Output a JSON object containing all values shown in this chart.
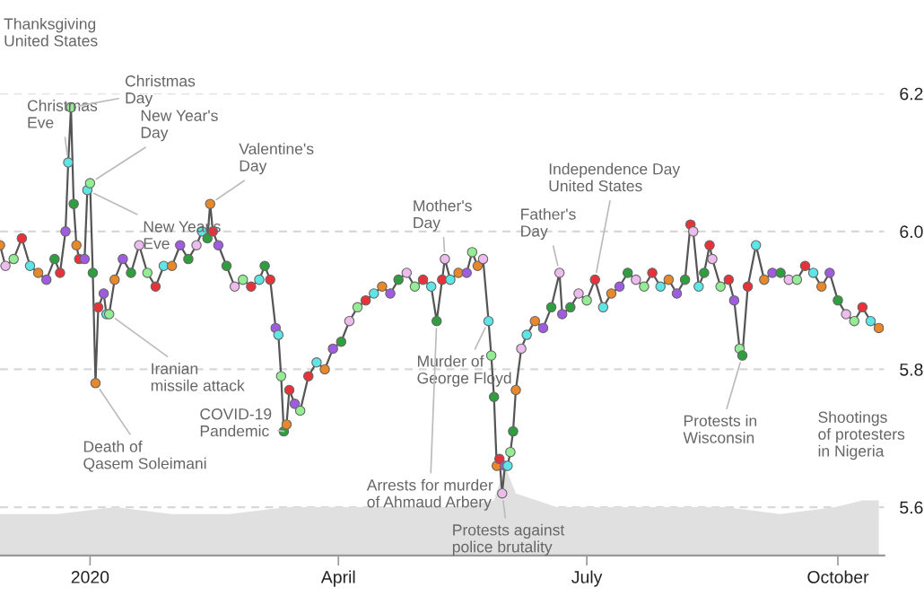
{
  "chart_data": {
    "type": "line",
    "xlim": [
      "2019-11-29",
      "2020-10-18"
    ],
    "ylim": [
      5.53,
      6.2
    ],
    "xticks": [
      {
        "value": "2020-01-01",
        "label": "2020"
      },
      {
        "value": "2020-04-01",
        "label": "April"
      },
      {
        "value": "2020-07-01",
        "label": "July"
      },
      {
        "value": "2020-10-01",
        "label": "October"
      }
    ],
    "yticks": [
      {
        "value": 5.6,
        "label": "5.6"
      },
      {
        "value": 5.8,
        "label": "5.8"
      },
      {
        "value": 6.0,
        "label": "6.0"
      },
      {
        "value": 6.2,
        "label": "6.2"
      }
    ],
    "grid": "y",
    "series": [
      {
        "type": "area",
        "color": "#e0e0e0",
        "x": [
          "2019-11-29",
          "2019-12-20",
          "2020-01-10",
          "2020-01-31",
          "2020-02-21",
          "2020-03-13",
          "2020-04-03",
          "2020-04-24",
          "2020-05-15",
          "2020-05-28",
          "2020-06-01",
          "2020-06-05",
          "2020-06-20",
          "2020-07-10",
          "2020-08-01",
          "2020-08-21",
          "2020-09-10",
          "2020-09-30",
          "2020-10-10",
          "2020-10-16"
        ],
        "values": [
          5.59,
          5.59,
          5.6,
          5.59,
          5.59,
          5.6,
          5.6,
          5.6,
          5.6,
          5.61,
          5.66,
          5.62,
          5.6,
          5.6,
          5.6,
          5.6,
          5.59,
          5.6,
          5.61,
          5.61
        ]
      },
      {
        "marker": "circle",
        "color": "#555555",
        "x": [
          "2019-11-29",
          "2019-12-01",
          "2019-12-04",
          "2019-12-07",
          "2019-12-10",
          "2019-12-13",
          "2019-12-16",
          "2019-12-19",
          "2019-12-21",
          "2019-12-23",
          "2019-12-24",
          "2019-12-25",
          "2019-12-26",
          "2019-12-27",
          "2019-12-28",
          "2019-12-30",
          "2019-12-31",
          "2020-01-01",
          "2020-01-02",
          "2020-01-03",
          "2020-01-04",
          "2020-01-06",
          "2020-01-07",
          "2020-01-08",
          "2020-01-10",
          "2020-01-13",
          "2020-01-16",
          "2020-01-19",
          "2020-01-22",
          "2020-01-25",
          "2020-01-28",
          "2020-01-31",
          "2020-02-03",
          "2020-02-06",
          "2020-02-09",
          "2020-02-11",
          "2020-02-13",
          "2020-02-14",
          "2020-02-15",
          "2020-02-17",
          "2020-02-20",
          "2020-02-23",
          "2020-02-26",
          "2020-02-29",
          "2020-03-03",
          "2020-03-05",
          "2020-03-07",
          "2020-03-09",
          "2020-03-10",
          "2020-03-11",
          "2020-03-12",
          "2020-03-13",
          "2020-03-14",
          "2020-03-16",
          "2020-03-18",
          "2020-03-21",
          "2020-03-24",
          "2020-03-27",
          "2020-03-30",
          "2020-04-02",
          "2020-04-05",
          "2020-04-08",
          "2020-04-11",
          "2020-04-14",
          "2020-04-17",
          "2020-04-20",
          "2020-04-23",
          "2020-04-26",
          "2020-04-29",
          "2020-05-02",
          "2020-05-05",
          "2020-05-07",
          "2020-05-09",
          "2020-05-10",
          "2020-05-12",
          "2020-05-15",
          "2020-05-18",
          "2020-05-20",
          "2020-05-22",
          "2020-05-24",
          "2020-05-26",
          "2020-05-27",
          "2020-05-28",
          "2020-05-29",
          "2020-05-30",
          "2020-05-31",
          "2020-06-01",
          "2020-06-02",
          "2020-06-03",
          "2020-06-04",
          "2020-06-05",
          "2020-06-07",
          "2020-06-09",
          "2020-06-12",
          "2020-06-15",
          "2020-06-18",
          "2020-06-21",
          "2020-06-22",
          "2020-06-25",
          "2020-06-28",
          "2020-07-01",
          "2020-07-04",
          "2020-07-07",
          "2020-07-10",
          "2020-07-13",
          "2020-07-16",
          "2020-07-19",
          "2020-07-22",
          "2020-07-25",
          "2020-07-28",
          "2020-07-31",
          "2020-08-03",
          "2020-08-06",
          "2020-08-08",
          "2020-08-09",
          "2020-08-11",
          "2020-08-13",
          "2020-08-15",
          "2020-08-16",
          "2020-08-19",
          "2020-08-22",
          "2020-08-24",
          "2020-08-26",
          "2020-08-27",
          "2020-08-29",
          "2020-09-01",
          "2020-09-04",
          "2020-09-07",
          "2020-09-10",
          "2020-09-13",
          "2020-09-16",
          "2020-09-19",
          "2020-09-22",
          "2020-09-25",
          "2020-09-28",
          "2020-10-01",
          "2020-10-04",
          "2020-10-07",
          "2020-10-10",
          "2020-10-13",
          "2020-10-16"
        ],
        "values": [
          5.98,
          5.95,
          5.96,
          5.99,
          5.95,
          5.94,
          5.93,
          5.96,
          5.94,
          6.0,
          6.1,
          6.18,
          6.04,
          5.98,
          5.96,
          5.96,
          6.06,
          6.07,
          5.94,
          5.78,
          5.89,
          5.91,
          5.88,
          5.88,
          5.93,
          5.96,
          5.94,
          5.98,
          5.94,
          5.92,
          5.95,
          5.95,
          5.98,
          5.96,
          5.98,
          6.0,
          5.99,
          6.04,
          6.0,
          5.98,
          5.95,
          5.92,
          5.93,
          5.92,
          5.93,
          5.95,
          5.93,
          5.86,
          5.85,
          5.79,
          5.71,
          5.72,
          5.77,
          5.75,
          5.74,
          5.79,
          5.81,
          5.8,
          5.83,
          5.84,
          5.87,
          5.89,
          5.9,
          5.91,
          5.92,
          5.91,
          5.93,
          5.94,
          5.92,
          5.93,
          5.92,
          5.87,
          5.93,
          5.96,
          5.93,
          5.94,
          5.94,
          5.97,
          5.95,
          5.96,
          5.87,
          5.82,
          5.76,
          5.66,
          5.67,
          5.62,
          5.66,
          5.66,
          5.68,
          5.71,
          5.77,
          5.83,
          5.85,
          5.87,
          5.86,
          5.89,
          5.94,
          5.88,
          5.89,
          5.91,
          5.9,
          5.93,
          5.89,
          5.91,
          5.92,
          5.94,
          5.93,
          5.92,
          5.94,
          5.92,
          5.93,
          5.91,
          5.93,
          6.01,
          6.0,
          5.92,
          5.94,
          5.98,
          5.96,
          5.92,
          5.93,
          5.9,
          5.83,
          5.82,
          5.92,
          5.98,
          5.93,
          5.94,
          5.94,
          5.93,
          5.93,
          5.95,
          5.94,
          5.92,
          5.94,
          5.9,
          5.88,
          5.87,
          5.89,
          5.87,
          5.86
        ],
        "colors": [
          "#e8882a",
          "#ecbcec",
          "#94ec94",
          "#e8323a",
          "#5ee6e6",
          "#e8882a",
          "#a05ce0",
          "#2e9e3e",
          "#e8323a",
          "#a05ce0",
          "#5ee6e6",
          "#94ec94",
          "#2e9e3e",
          "#e8882a",
          "#e8323a",
          "#a05ce0",
          "#5ee6e6",
          "#94ec94",
          "#2e9e3e",
          "#e8882a",
          "#e8323a",
          "#a05ce0",
          "#5ee6e6",
          "#94ec94",
          "#e8882a",
          "#a05ce0",
          "#2e9e3e",
          "#ecbcec",
          "#94ec94",
          "#e8323a",
          "#5ee6e6",
          "#e8882a",
          "#a05ce0",
          "#2e9e3e",
          "#ecbcec",
          "#5ee6e6",
          "#2e9e3e",
          "#e8882a",
          "#e8323a",
          "#a05ce0",
          "#2e9e3e",
          "#ecbcec",
          "#94ec94",
          "#e8323a",
          "#5ee6e6",
          "#2e9e3e",
          "#e8323a",
          "#a05ce0",
          "#5ee6e6",
          "#94ec94",
          "#2e9e3e",
          "#e8882a",
          "#e8323a",
          "#a05ce0",
          "#94ec94",
          "#e8323a",
          "#5ee6e6",
          "#e8882a",
          "#a05ce0",
          "#2e9e3e",
          "#ecbcec",
          "#94ec94",
          "#e8323a",
          "#5ee6e6",
          "#e8882a",
          "#a05ce0",
          "#2e9e3e",
          "#ecbcec",
          "#94ec94",
          "#e8323a",
          "#5ee6e6",
          "#2e9e3e",
          "#e8323a",
          "#ecbcec",
          "#5ee6e6",
          "#e8882a",
          "#a05ce0",
          "#94ec94",
          "#e8882a",
          "#ecbcec",
          "#5ee6e6",
          "#94ec94",
          "#2e9e3e",
          "#e8882a",
          "#e8323a",
          "#ecbcec",
          "#a05ce0",
          "#5ee6e6",
          "#94ec94",
          "#2e9e3e",
          "#e8882a",
          "#ecbcec",
          "#5ee6e6",
          "#e8882a",
          "#a05ce0",
          "#2e9e3e",
          "#ecbcec",
          "#a05ce0",
          "#2e9e3e",
          "#ecbcec",
          "#94ec94",
          "#e8323a",
          "#5ee6e6",
          "#e8882a",
          "#a05ce0",
          "#2e9e3e",
          "#ecbcec",
          "#94ec94",
          "#e8323a",
          "#5ee6e6",
          "#e8882a",
          "#a05ce0",
          "#2e9e3e",
          "#e8323a",
          "#ecbcec",
          "#5ee6e6",
          "#2e9e3e",
          "#e8323a",
          "#ecbcec",
          "#94ec94",
          "#e8323a",
          "#a05ce0",
          "#94ec94",
          "#2e9e3e",
          "#e8323a",
          "#5ee6e6",
          "#e8882a",
          "#a05ce0",
          "#2e9e3e",
          "#ecbcec",
          "#94ec94",
          "#e8323a",
          "#5ee6e6",
          "#e8882a",
          "#a05ce0",
          "#2e9e3e",
          "#ecbcec",
          "#94ec94",
          "#e8323a",
          "#5ee6e6",
          "#e8882a"
        ]
      }
    ],
    "annotations": [
      "Thanksgiving\nUnited States",
      {
        "text": "Christmas\nEve",
        "x": "2019-12-24",
        "y": 6.1
      },
      {
        "text": "Christmas\nDay",
        "x": "2019-12-25",
        "y": 6.18
      },
      {
        "text": "New Year's\nDay",
        "x": "2020-01-01",
        "y": 6.07
      },
      {
        "text": "New Year's\nEve",
        "x": "2019-12-31",
        "y": 6.06
      },
      {
        "text": "Valentine's\nDay",
        "x": "2020-02-14",
        "y": 6.04
      },
      {
        "text": "Mother's\nDay",
        "x": "2020-05-10",
        "y": 5.96
      },
      {
        "text": "Father's\nDay",
        "x": "2020-06-21",
        "y": 5.94
      },
      {
        "text": "Independence Day\nUnited States",
        "x": "2020-07-04",
        "y": 5.93
      },
      {
        "text": "Iranian\nmissile attack",
        "x": "2020-01-08",
        "y": 5.88
      },
      {
        "text": "Death of\nQasem Soleimani",
        "x": "2020-01-03",
        "y": 5.78
      },
      {
        "text": "COVID-19\nPandemic",
        "x": "2020-03-12",
        "y": 5.71
      },
      {
        "text": "Murder of\nGeorge Floyd",
        "x": "2020-05-26",
        "y": 5.87
      },
      {
        "text": "Arrests for murder\nof Ahmaud Arbery",
        "x": "2020-05-07",
        "y": 5.87
      },
      {
        "text": "Protests against\npolice brutality",
        "x": "2020-05-31",
        "y": 5.62
      },
      {
        "text": "Protests in\nWisconsin",
        "x": "2020-08-27",
        "y": 5.82
      },
      "Shootings\nof protesters\nin Nigeria"
    ]
  }
}
